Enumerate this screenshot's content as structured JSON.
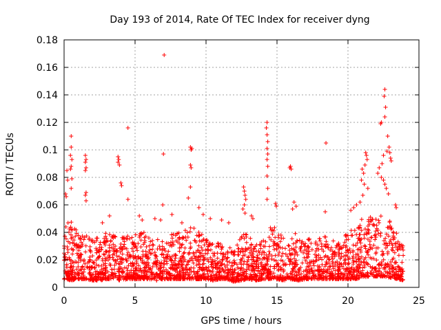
{
  "chart_data": {
    "type": "scatter",
    "title": "Day 193 of 2014, Rate Of TEC Index for receiver dyng",
    "xlabel": "GPS time / hours",
    "ylabel": "ROTI / TECUs",
    "xlim": [
      0,
      25
    ],
    "ylim": [
      0,
      0.18
    ],
    "x_ticks": [
      0,
      5,
      10,
      15,
      20,
      25
    ],
    "y_ticks": [
      0,
      0.02,
      0.04,
      0.06,
      0.08,
      0.1,
      0.12,
      0.14,
      0.16,
      0.18
    ],
    "x_tick_labels": [
      "0",
      "5",
      "10",
      "15",
      "20",
      "25"
    ],
    "y_tick_labels": [
      "0",
      "0.02",
      "0.04",
      "0.06",
      "0.08",
      "0.1",
      "0.12",
      "0.14",
      "0.16",
      "0.18"
    ],
    "grid": true,
    "marker": "+",
    "marker_color": "#ff0000",
    "series": [
      {
        "name": "ROTI",
        "points": [
          [
            7.05,
            0.169
          ],
          [
            22.6,
            0.144
          ],
          [
            22.55,
            0.139
          ],
          [
            22.65,
            0.131
          ],
          [
            22.6,
            0.124
          ],
          [
            22.3,
            0.119
          ],
          [
            22.35,
            0.12
          ],
          [
            14.3,
            0.12
          ],
          [
            14.25,
            0.116
          ],
          [
            14.3,
            0.111
          ],
          [
            14.35,
            0.106
          ],
          [
            14.3,
            0.101
          ],
          [
            14.35,
            0.097
          ],
          [
            14.3,
            0.093
          ],
          [
            14.35,
            0.088
          ],
          [
            14.3,
            0.081
          ],
          [
            14.35,
            0.072
          ],
          [
            14.3,
            0.064
          ],
          [
            4.5,
            0.116
          ],
          [
            0.5,
            0.11
          ],
          [
            0.5,
            0.102
          ],
          [
            0.45,
            0.096
          ],
          [
            0.55,
            0.093
          ],
          [
            0.5,
            0.088
          ],
          [
            0.45,
            0.086
          ],
          [
            0.55,
            0.079
          ],
          [
            0.5,
            0.072
          ],
          [
            0.2,
            0.085
          ],
          [
            0.25,
            0.078
          ],
          [
            0.1,
            0.068
          ],
          [
            0.15,
            0.066
          ],
          [
            18.45,
            0.105
          ],
          [
            8.9,
            0.102
          ],
          [
            8.95,
            0.1
          ],
          [
            9.0,
            0.101
          ],
          [
            8.9,
            0.089
          ],
          [
            8.95,
            0.087
          ],
          [
            8.9,
            0.073
          ],
          [
            8.75,
            0.065
          ],
          [
            7.0,
            0.097
          ],
          [
            6.95,
            0.06
          ],
          [
            3.8,
            0.095
          ],
          [
            3.85,
            0.093
          ],
          [
            3.8,
            0.091
          ],
          [
            3.9,
            0.089
          ],
          [
            4.0,
            0.076
          ],
          [
            4.05,
            0.074
          ],
          [
            4.5,
            0.064
          ],
          [
            1.5,
            0.096
          ],
          [
            1.55,
            0.093
          ],
          [
            1.5,
            0.091
          ],
          [
            1.55,
            0.087
          ],
          [
            1.5,
            0.085
          ],
          [
            1.55,
            0.069
          ],
          [
            1.5,
            0.067
          ],
          [
            1.55,
            0.063
          ],
          [
            15.95,
            0.088
          ],
          [
            15.9,
            0.087
          ],
          [
            16.0,
            0.086
          ],
          [
            22.8,
            0.11
          ],
          [
            22.9,
            0.102
          ],
          [
            22.95,
            0.098
          ],
          [
            23.0,
            0.094
          ],
          [
            23.05,
            0.092
          ],
          [
            22.75,
            0.099
          ],
          [
            22.5,
            0.096
          ],
          [
            22.4,
            0.09
          ],
          [
            22.2,
            0.087
          ],
          [
            22.1,
            0.083
          ],
          [
            22.35,
            0.08
          ],
          [
            22.5,
            0.078
          ],
          [
            22.6,
            0.075
          ],
          [
            22.7,
            0.072
          ],
          [
            22.85,
            0.068
          ],
          [
            23.35,
            0.06
          ],
          [
            23.4,
            0.058
          ],
          [
            21.25,
            0.098
          ],
          [
            21.3,
            0.096
          ],
          [
            21.35,
            0.093
          ],
          [
            21.2,
            0.089
          ],
          [
            21.0,
            0.086
          ],
          [
            21.1,
            0.083
          ],
          [
            20.95,
            0.078
          ],
          [
            21.15,
            0.075
          ],
          [
            21.4,
            0.072
          ],
          [
            21.05,
            0.067
          ],
          [
            20.85,
            0.062
          ],
          [
            20.6,
            0.06
          ],
          [
            20.4,
            0.058
          ],
          [
            20.2,
            0.056
          ],
          [
            12.65,
            0.073
          ],
          [
            12.7,
            0.07
          ],
          [
            12.75,
            0.067
          ],
          [
            12.8,
            0.064
          ],
          [
            12.7,
            0.06
          ],
          [
            12.6,
            0.057
          ],
          [
            12.75,
            0.054
          ],
          [
            18.4,
            0.055
          ],
          [
            16.2,
            0.062
          ],
          [
            16.35,
            0.059
          ],
          [
            16.1,
            0.057
          ],
          [
            14.9,
            0.061
          ],
          [
            14.95,
            0.059
          ],
          [
            13.2,
            0.052
          ],
          [
            13.3,
            0.05
          ],
          [
            9.5,
            0.058
          ],
          [
            9.8,
            0.053
          ],
          [
            10.3,
            0.05
          ],
          [
            11.1,
            0.049
          ],
          [
            11.6,
            0.047
          ],
          [
            2.7,
            0.047
          ],
          [
            5.3,
            0.052
          ],
          [
            5.5,
            0.049
          ],
          [
            6.4,
            0.05
          ],
          [
            6.8,
            0.049
          ],
          [
            7.6,
            0.053
          ],
          [
            8.3,
            0.047
          ],
          [
            3.2,
            0.052
          ]
        ]
      }
    ],
    "band_envelope": {
      "x": [
        0,
        0.5,
        1,
        1.5,
        2,
        2.5,
        3,
        3.5,
        4,
        4.5,
        5,
        5.5,
        6,
        6.5,
        7,
        7.5,
        8,
        8.5,
        9,
        9.5,
        10,
        10.5,
        11,
        11.5,
        12,
        12.5,
        13,
        13.5,
        14,
        14.5,
        15,
        15.5,
        16,
        16.5,
        17,
        17.5,
        18,
        18.5,
        19,
        19.5,
        20,
        20.5,
        21,
        21.5,
        22,
        22.5,
        23,
        23.5,
        23.9
      ],
      "upper": [
        0.045,
        0.05,
        0.04,
        0.04,
        0.035,
        0.038,
        0.04,
        0.038,
        0.04,
        0.038,
        0.038,
        0.042,
        0.036,
        0.036,
        0.034,
        0.038,
        0.04,
        0.042,
        0.044,
        0.042,
        0.036,
        0.034,
        0.032,
        0.03,
        0.028,
        0.04,
        0.038,
        0.036,
        0.034,
        0.048,
        0.044,
        0.036,
        0.038,
        0.04,
        0.036,
        0.036,
        0.036,
        0.038,
        0.034,
        0.036,
        0.04,
        0.045,
        0.055,
        0.052,
        0.05,
        0.058,
        0.048,
        0.04,
        0.03
      ],
      "lower": [
        0.006,
        0.005,
        0.006,
        0.006,
        0.005,
        0.005,
        0.006,
        0.006,
        0.005,
        0.006,
        0.006,
        0.006,
        0.006,
        0.005,
        0.006,
        0.006,
        0.006,
        0.006,
        0.006,
        0.006,
        0.006,
        0.005,
        0.006,
        0.006,
        0.004,
        0.005,
        0.006,
        0.005,
        0.006,
        0.006,
        0.006,
        0.005,
        0.006,
        0.005,
        0.006,
        0.006,
        0.006,
        0.006,
        0.006,
        0.006,
        0.006,
        0.006,
        0.007,
        0.008,
        0.008,
        0.008,
        0.007,
        0.006,
        0.005
      ]
    }
  }
}
